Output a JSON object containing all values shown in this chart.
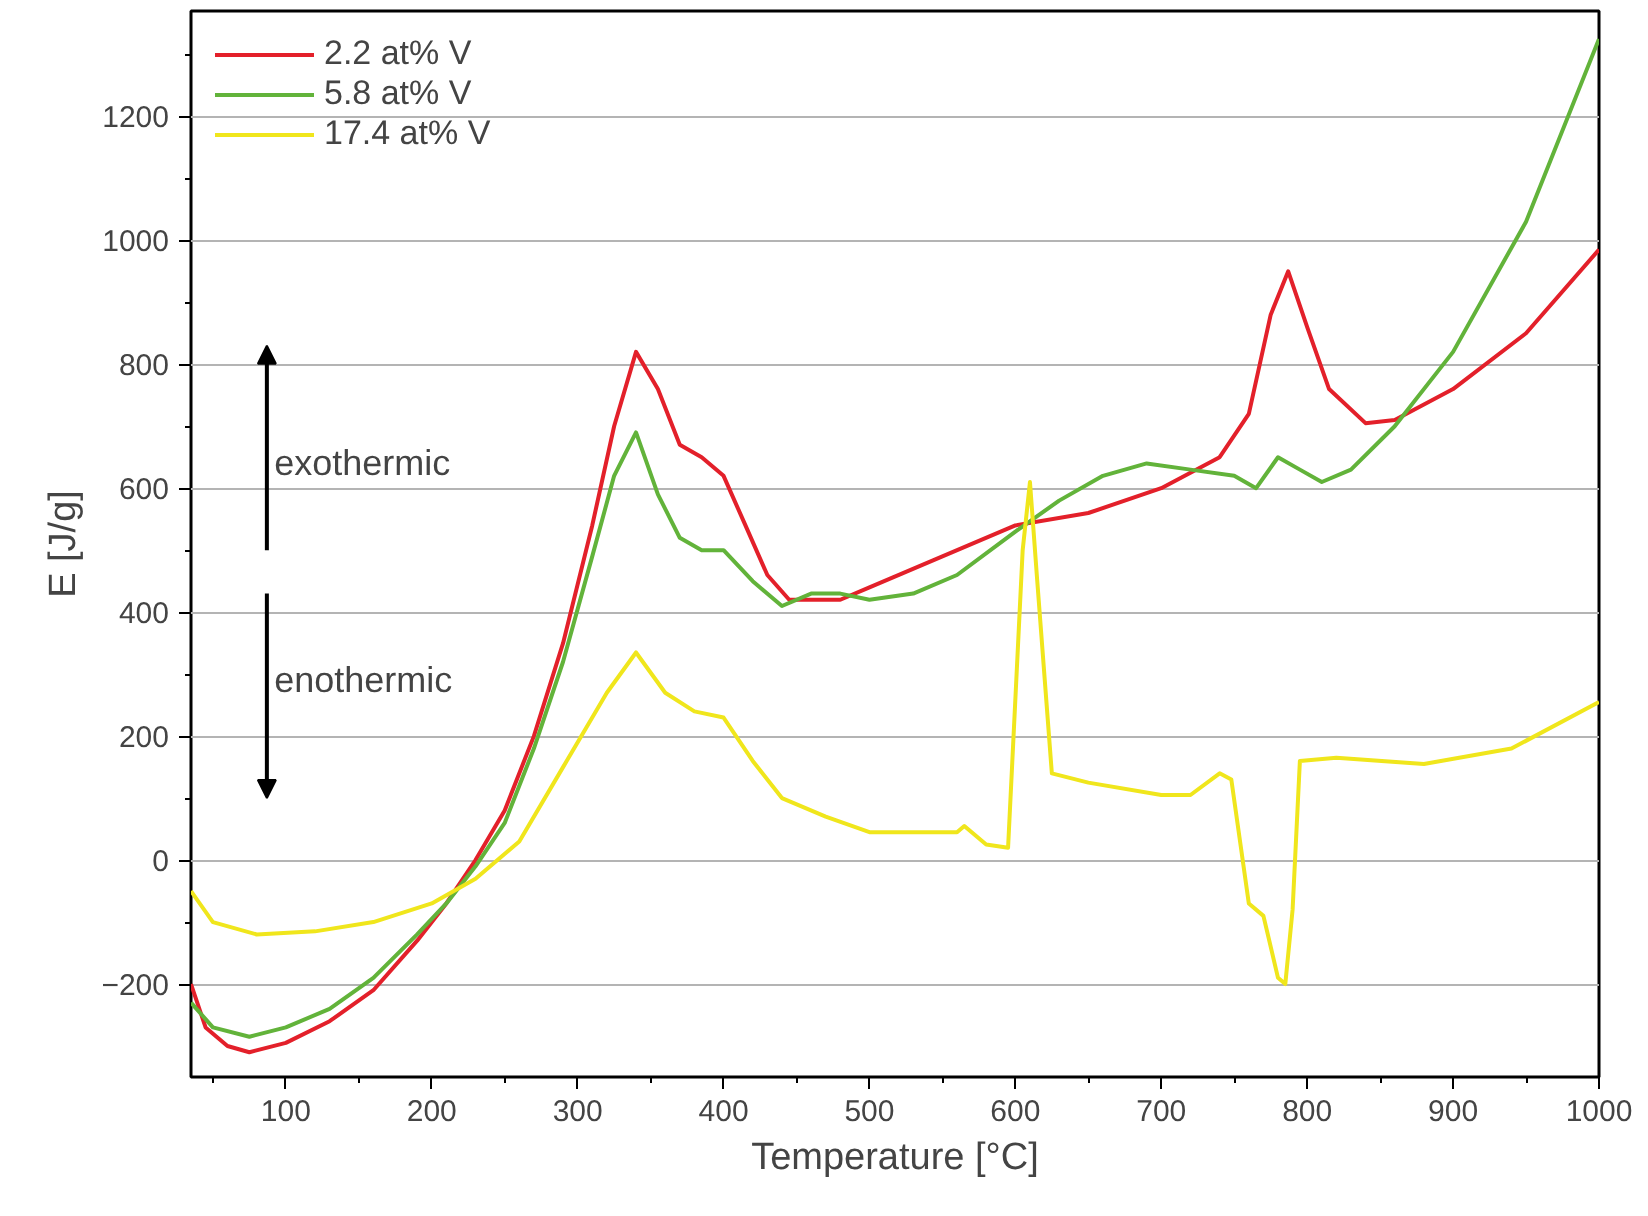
{
  "chart_data": {
    "type": "line",
    "xlabel": "Temperature [°C]",
    "ylabel": "E [J/g]",
    "xlim": [
      35,
      1000
    ],
    "ylim": [
      -350,
      1370
    ],
    "xticks": [
      100,
      200,
      300,
      400,
      500,
      600,
      700,
      800,
      900,
      1000
    ],
    "yticks": [
      -200,
      0,
      200,
      400,
      600,
      800,
      1000,
      1200
    ],
    "grid": "y",
    "legend": "top left",
    "line_style": "solid",
    "marker": "none",
    "annotations": [
      "exothermic",
      "enothermic"
    ],
    "series": [
      {
        "name": "2.2 at% V",
        "color": "#e3202a",
        "x": [
          35,
          45,
          60,
          75,
          100,
          130,
          160,
          190,
          210,
          230,
          250,
          270,
          290,
          310,
          325,
          340,
          355,
          370,
          385,
          400,
          415,
          430,
          445,
          460,
          480,
          500,
          550,
          600,
          650,
          700,
          740,
          760,
          775,
          787,
          800,
          815,
          840,
          860,
          900,
          950,
          1000
        ],
        "values": [
          -200,
          -270,
          -300,
          -310,
          -295,
          -260,
          -210,
          -130,
          -70,
          0,
          80,
          200,
          350,
          540,
          700,
          820,
          760,
          670,
          650,
          620,
          540,
          460,
          420,
          420,
          420,
          440,
          490,
          540,
          560,
          600,
          650,
          720,
          880,
          950,
          860,
          760,
          705,
          710,
          760,
          850,
          985
        ]
      },
      {
        "name": "5.8 at% V",
        "color": "#62b33a",
        "x": [
          35,
          50,
          75,
          100,
          130,
          160,
          190,
          210,
          230,
          250,
          270,
          290,
          310,
          325,
          340,
          355,
          370,
          385,
          400,
          420,
          440,
          460,
          480,
          500,
          530,
          560,
          600,
          630,
          660,
          690,
          720,
          750,
          765,
          780,
          795,
          810,
          830,
          860,
          900,
          950,
          1000
        ],
        "values": [
          -230,
          -270,
          -285,
          -270,
          -240,
          -190,
          -120,
          -70,
          -10,
          60,
          180,
          320,
          490,
          620,
          690,
          590,
          520,
          500,
          500,
          450,
          410,
          430,
          430,
          420,
          430,
          460,
          530,
          580,
          620,
          640,
          630,
          620,
          600,
          650,
          630,
          610,
          630,
          700,
          820,
          1030,
          1325
        ]
      },
      {
        "name": "17.4 at% V",
        "color": "#f0e61c",
        "x": [
          35,
          50,
          80,
          120,
          160,
          200,
          230,
          260,
          290,
          320,
          340,
          360,
          380,
          400,
          420,
          440,
          470,
          500,
          530,
          560,
          565,
          580,
          595,
          605,
          610,
          615,
          625,
          650,
          700,
          720,
          740,
          748,
          760,
          770,
          780,
          785,
          790,
          795,
          820,
          880,
          940,
          1000
        ],
        "values": [
          -50,
          -100,
          -120,
          -115,
          -100,
          -70,
          -30,
          30,
          150,
          270,
          335,
          270,
          240,
          230,
          160,
          100,
          70,
          45,
          45,
          45,
          55,
          25,
          20,
          500,
          610,
          450,
          140,
          125,
          105,
          105,
          140,
          130,
          -70,
          -90,
          -190,
          -200,
          -80,
          160,
          165,
          155,
          180,
          255
        ]
      }
    ]
  }
}
